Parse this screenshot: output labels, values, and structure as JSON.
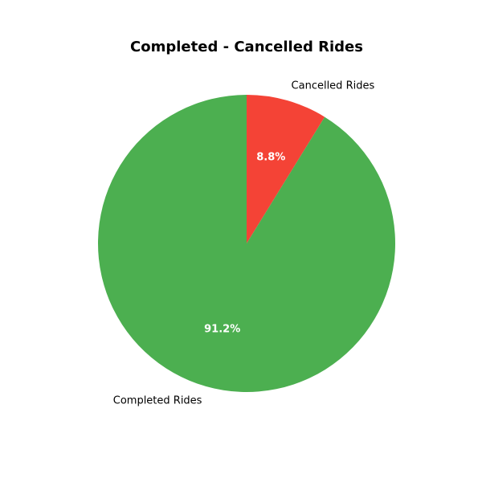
{
  "chart_data": {
    "type": "pie",
    "title": "Completed - Cancelled Rides",
    "slices": [
      {
        "label": "Cancelled Rides",
        "value": 8.8,
        "pct_label": "8.8%",
        "color": "#f44336"
      },
      {
        "label": "Completed Rides",
        "value": 91.2,
        "pct_label": "91.2%",
        "color": "#4caf50"
      }
    ],
    "start_angle_deg": 90,
    "direction": "clockwise",
    "legend": "none"
  }
}
